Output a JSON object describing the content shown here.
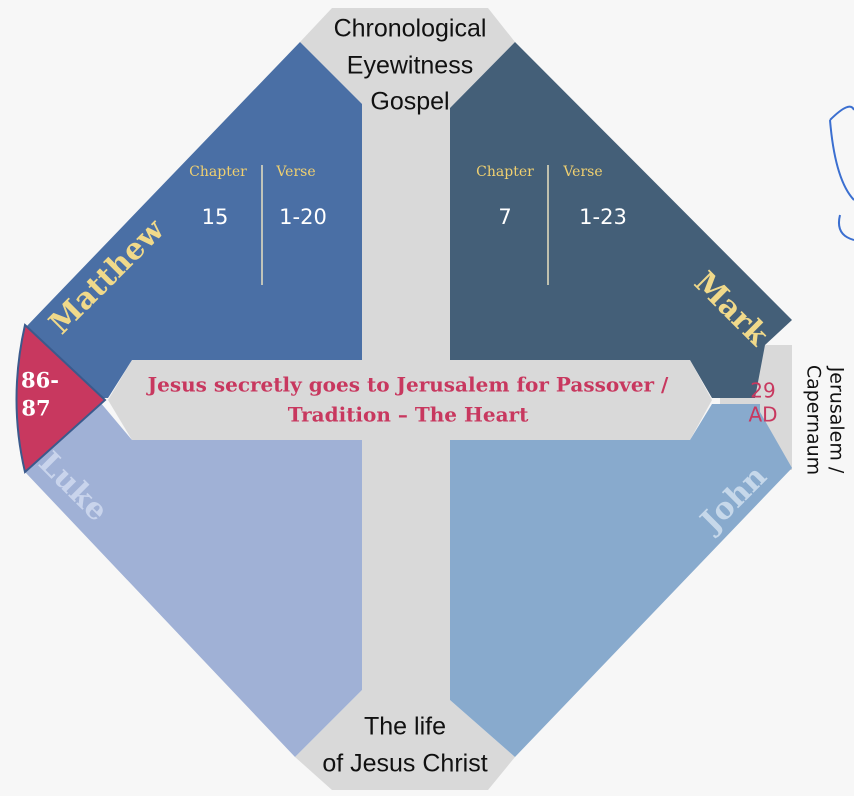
{
  "top_label": [
    "Chronological",
    "Eyewitness",
    "Gospel"
  ],
  "bottom_label": [
    "The life",
    "of Jesus Christ"
  ],
  "column_headers": [
    "Chapter",
    "Verse"
  ],
  "gospels": [
    {
      "name": "Matthew",
      "chapter": "15",
      "verse": "1-20"
    },
    {
      "name": "Mark",
      "chapter": "7",
      "verse": "1-23"
    },
    {
      "name": "Luke"
    },
    {
      "name": "John"
    }
  ],
  "center_text": [
    "Jesus secretly goes to Jerusalem for Passover /",
    "Tradition – The Heart"
  ],
  "left_tab": [
    "86-",
    "87"
  ],
  "year": [
    "29",
    "AD"
  ],
  "location": [
    "Jerusalem /",
    "Capernaum"
  ]
}
